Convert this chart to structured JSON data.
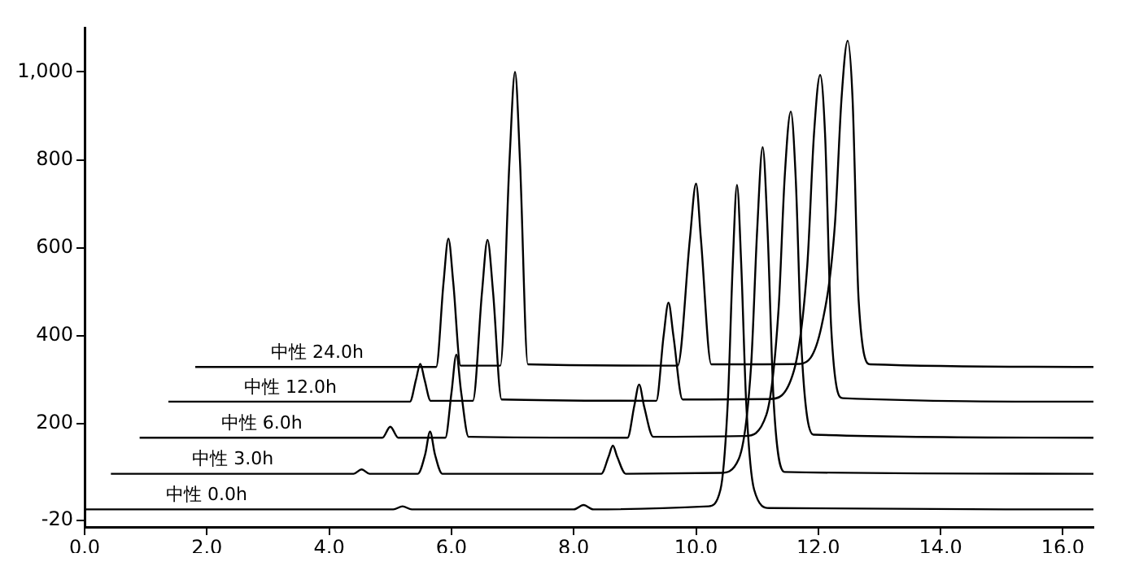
{
  "chart_data": {
    "type": "line",
    "xlim": [
      0,
      16.5
    ],
    "xticks": [
      {
        "value": 0,
        "label": "0.0"
      },
      {
        "value": 2,
        "label": "2.0"
      },
      {
        "value": 4,
        "label": "4.0"
      },
      {
        "value": 6,
        "label": "6.0"
      },
      {
        "value": 8,
        "label": "8.0"
      },
      {
        "value": 10,
        "label": "10.0"
      },
      {
        "value": 12,
        "label": "12.0"
      },
      {
        "value": 14,
        "label": "14.0"
      },
      {
        "value": 16,
        "label": "16.0"
      }
    ],
    "ylim": [
      -35,
      1100
    ],
    "yticks": [
      -20,
      200,
      400,
      600,
      800,
      {
        "value": 1000,
        "label": "1,000"
      }
    ],
    "legend": false,
    "marker": "none",
    "line_style": "solid",
    "series": [
      {
        "name": "中性 0.0h",
        "color": "#000000",
        "x": [
          0,
          5.05,
          5.2,
          5.35,
          8.0,
          8.16,
          8.32,
          10.2,
          10.4,
          10.52,
          10.6,
          10.67,
          10.74,
          10.82,
          10.95,
          11.2,
          16.5
        ],
        "values": [
          5,
          5,
          12,
          5,
          5,
          15,
          5,
          12,
          50,
          250,
          560,
          743,
          560,
          250,
          50,
          8,
          5
        ]
      },
      {
        "name": "中性 3.0h",
        "color": "#000000",
        "x": [
          0.43,
          4.4,
          4.53,
          4.66,
          5.45,
          5.57,
          5.65,
          5.73,
          5.85,
          8.45,
          8.57,
          8.64,
          8.71,
          8.85,
          10.4,
          10.7,
          10.9,
          11.0,
          11.09,
          11.17,
          11.27,
          11.45,
          16.5
        ],
        "values": [
          86,
          86,
          96,
          86,
          86,
          130,
          182,
          130,
          86,
          86,
          125,
          150,
          125,
          86,
          88,
          120,
          330,
          640,
          829,
          640,
          250,
          90,
          86
        ]
      },
      {
        "name": "中性 6.0h",
        "color": "#000000",
        "x": [
          0.9,
          4.87,
          5.0,
          5.13,
          5.9,
          6.0,
          6.08,
          6.16,
          6.28,
          8.88,
          8.99,
          9.07,
          9.15,
          9.3,
          10.8,
          11.15,
          11.35,
          11.45,
          11.55,
          11.63,
          11.73,
          11.92,
          16.5
        ],
        "values": [
          168,
          168,
          193,
          168,
          168,
          270,
          357,
          270,
          170,
          168,
          240,
          289,
          240,
          170,
          172,
          220,
          460,
          760,
          910,
          760,
          360,
          175,
          168
        ]
      },
      {
        "name": "中性 12.0h",
        "color": "#000000",
        "x": [
          1.37,
          5.32,
          5.42,
          5.49,
          5.56,
          5.66,
          6.35,
          6.5,
          6.59,
          6.68,
          6.82,
          9.35,
          9.47,
          9.55,
          9.63,
          9.78,
          11.2,
          11.6,
          11.82,
          11.93,
          12.03,
          12.11,
          12.21,
          12.4,
          16.5
        ],
        "values": [
          250,
          250,
          300,
          336,
          300,
          252,
          252,
          500,
          618,
          500,
          255,
          252,
          400,
          475,
          400,
          255,
          256,
          320,
          560,
          860,
          993,
          860,
          420,
          258,
          250
        ]
      },
      {
        "name": "中性 24.0h",
        "color": "#000000",
        "x": [
          1.81,
          5.75,
          5.87,
          5.95,
          6.03,
          6.15,
          6.8,
          6.95,
          7.04,
          7.12,
          7.25,
          9.7,
          9.9,
          10.0,
          10.08,
          10.25,
          11.7,
          12.05,
          12.27,
          12.38,
          12.48,
          12.56,
          12.66,
          12.85,
          16.5
        ],
        "values": [
          329,
          329,
          520,
          621,
          520,
          332,
          332,
          800,
          1000,
          800,
          335,
          332,
          620,
          746,
          620,
          335,
          336,
          420,
          650,
          940,
          1071,
          940,
          480,
          335,
          329
        ]
      }
    ]
  }
}
